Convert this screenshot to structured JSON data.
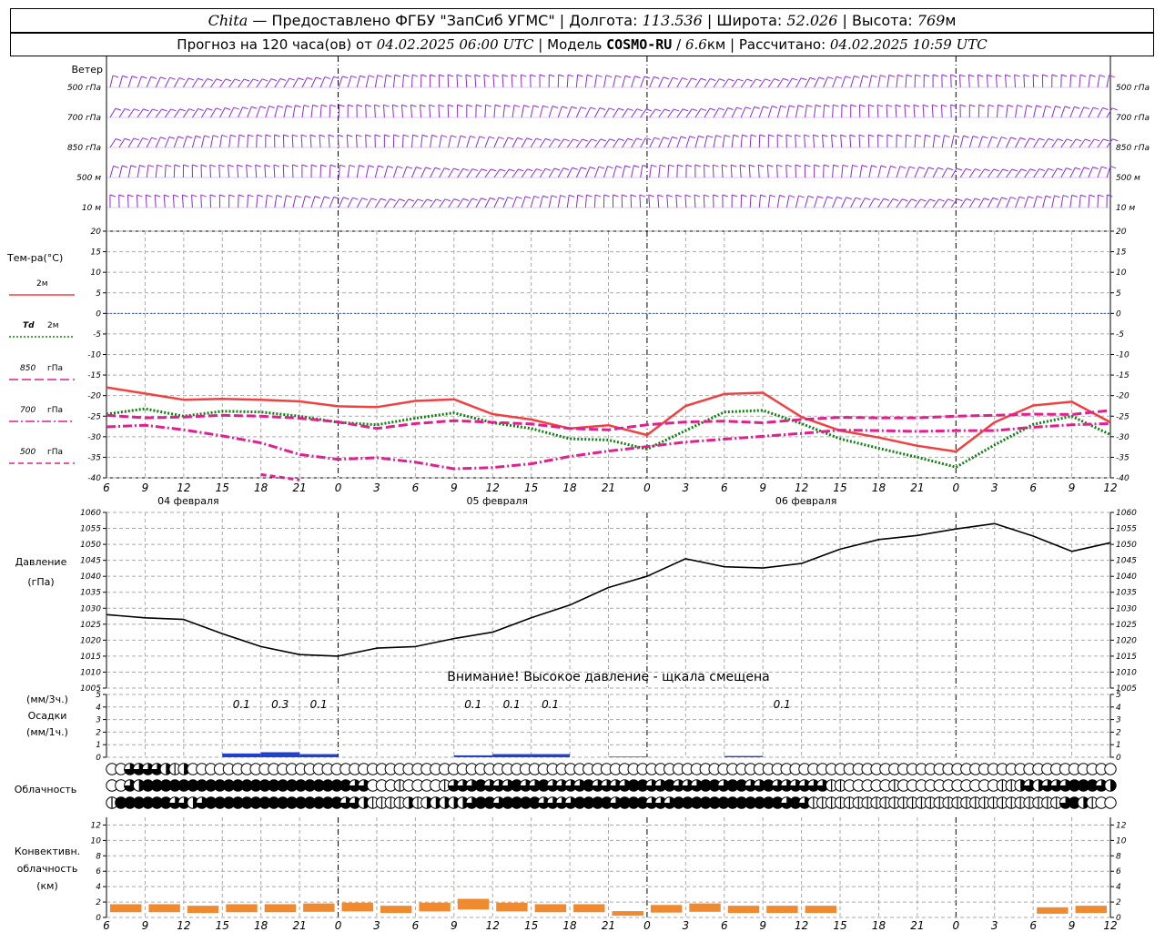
{
  "header": {
    "station": "Chita",
    "dash": "—",
    "provider": "Предоставлено ФГБУ \"ЗапСиб УГМС\"",
    "lon_label": "Долгота:",
    "lon": "113.536",
    "lat_label": "Широта:",
    "lat": "52.026",
    "alt_label": "Высота:",
    "alt": "769",
    "alt_unit": "м",
    "sep": "|",
    "forecast_prefix": "Прогноз на 120 часа(ов) от",
    "forecast_time": "04.02.2025 06:00 UTC",
    "model_label": "Модель",
    "model": "COSMO-RU",
    "model_slash": "/",
    "model_res": "6.6",
    "model_unit": "км",
    "computed_label": "Рассчитано:",
    "computed_time": "04.02.2025 10:59 UTC"
  },
  "time_axis": {
    "hour_labels": [
      "6",
      "9",
      "12",
      "15",
      "18",
      "21",
      "0",
      "3",
      "6",
      "9",
      "12",
      "15",
      "18",
      "21",
      "0",
      "3",
      "6",
      "9",
      "12",
      "15",
      "18",
      "21",
      "0",
      "3",
      "6",
      "9",
      "12"
    ],
    "date_labels": [
      {
        "text": "04 февраля",
        "at_step": 2
      },
      {
        "text": "05 февраля",
        "at_step": 10
      },
      {
        "text": "06 февраля",
        "at_step": 18
      }
    ],
    "midnight_steps": [
      6,
      14,
      22
    ]
  },
  "wind": {
    "title": "Ветер",
    "levels": [
      "500 гПа",
      "700 гПа",
      "850 гПа",
      "500 м",
      "10 м"
    ],
    "color": "#8a2be2"
  },
  "temperature": {
    "title": "Тем-ра(°С)",
    "ylim": [
      -40,
      20
    ],
    "ticks": [
      "20",
      "15",
      "10",
      "5",
      "0",
      "-5",
      "-10",
      "-15",
      "-20",
      "-25",
      "-30",
      "-35",
      "-40"
    ],
    "legend": [
      {
        "name": "2м",
        "prefix": "",
        "color": "#f04040",
        "style": "solid"
      },
      {
        "name": "2м",
        "prefix": "Td",
        "color": "#108010",
        "style": "dotted"
      },
      {
        "name": "гПа",
        "prefix": "850",
        "color": "#e0208e",
        "style": "dash"
      },
      {
        "name": "гПа",
        "prefix": "700",
        "color": "#e0208e",
        "style": "dashdot"
      },
      {
        "name": "гПа",
        "prefix": "500",
        "color": "#e0208e",
        "style": "dash2"
      }
    ],
    "zero_line_color": "#3050d0"
  },
  "pressure": {
    "title": "Давление",
    "unit": "(гПа)",
    "ylim": [
      1005,
      1060
    ],
    "ticks": [
      "1060",
      "1055",
      "1050",
      "1045",
      "1040",
      "1035",
      "1030",
      "1025",
      "1020",
      "1015",
      "1010",
      "1005"
    ],
    "warning": "Внимание! Высокое давление - щкала смещена"
  },
  "precip": {
    "unit3": "(мм/3ч.)",
    "title": "Осадки",
    "unit1": "(мм/1ч.)",
    "ylim": [
      0,
      5
    ],
    "ticks": [
      "5",
      "4",
      "3",
      "2",
      "1",
      "0"
    ],
    "labels": [
      {
        "step": 3,
        "text": "0.1"
      },
      {
        "step": 4,
        "text": "0.3"
      },
      {
        "step": 5,
        "text": "0.1"
      },
      {
        "step": 9,
        "text": "0.1"
      },
      {
        "step": 10,
        "text": "0.1"
      },
      {
        "step": 11,
        "text": "0.1"
      },
      {
        "step": 17,
        "text": "0.1"
      }
    ],
    "color": "#2040d0"
  },
  "cloud": {
    "title": "Облачность"
  },
  "convective": {
    "title1": "Конвективн.",
    "title2": "облачность",
    "unit": "(км)",
    "ylim": [
      0,
      13
    ],
    "ticks": [
      "12",
      "10",
      "8",
      "6",
      "4",
      "2",
      "0"
    ],
    "color": "#f08a30"
  },
  "chart_data": {
    "type": "line",
    "x": [
      "04.02 06",
      "09",
      "12",
      "15",
      "18",
      "21",
      "05.02 00",
      "03",
      "06",
      "09",
      "12",
      "15",
      "18",
      "21",
      "06.02 00",
      "03",
      "06",
      "09",
      "12",
      "15",
      "18",
      "21",
      "07.02 00",
      "03",
      "06",
      "09",
      "12"
    ],
    "series": [
      {
        "name": "2м",
        "values": [
          -18,
          -19.5,
          -21,
          -20.8,
          -21,
          -21.4,
          -22.6,
          -22.8,
          -21.3,
          -20.9,
          -24.5,
          -25.8,
          -28,
          -27.2,
          -29.6,
          -22.5,
          -19.6,
          -19.3,
          -25.2,
          -28.5,
          -30.2,
          -32.2,
          -33.6,
          -26.5,
          -22.4,
          -21.5,
          -26.5
        ]
      },
      {
        "name": "Td 2м",
        "values": [
          -24.5,
          -23.2,
          -25,
          -23.8,
          -24,
          -25,
          -26.5,
          -27.1,
          -25.5,
          -24.2,
          -26.6,
          -28,
          -30.5,
          -30.8,
          -33,
          -28.5,
          -24,
          -23.6,
          -26.8,
          -30.5,
          -32.8,
          -35,
          -37.4,
          -32,
          -27,
          -25,
          -29.5
        ]
      },
      {
        "name": "850 гПа",
        "values": [
          -24.8,
          -25.4,
          -25.2,
          -24.8,
          -25,
          -25.5,
          -26.4,
          -28,
          -26.8,
          -26.1,
          -26.5,
          -26.9,
          -28,
          -28.3,
          -27.1,
          -26.4,
          -26.2,
          -26.6,
          -25.8,
          -25.3,
          -25.4,
          -25.4,
          -25,
          -24.8,
          -24.5,
          -24.6,
          -23.6
        ]
      },
      {
        "name": "700 гПа",
        "values": [
          -27.6,
          -27.2,
          -28.3,
          -29.8,
          -31.5,
          -34.3,
          -35.5,
          -35.1,
          -36.2,
          -37.8,
          -37.5,
          -36.6,
          -34.8,
          -33.5,
          -32.4,
          -31.3,
          -30.6,
          -29.9,
          -29.2,
          -28.4,
          -28.5,
          -28.7,
          -28.5,
          -28.5,
          -27.7,
          -27.1,
          -26.8
        ]
      },
      {
        "name": "500 гПа",
        "values": [
          null,
          null,
          null,
          null,
          -39.2,
          -40.5,
          null,
          null,
          null,
          null,
          null,
          null,
          null,
          null,
          null,
          null,
          null,
          null,
          null,
          null,
          null,
          null,
          null,
          null,
          null,
          null,
          null
        ]
      }
    ],
    "pressure_values": [
      1028,
      1027,
      1026.5,
      1022,
      1018,
      1015.5,
      1015,
      1017.5,
      1018,
      1020.5,
      1022.5,
      1027,
      1031,
      1036.5,
      1040,
      1045.5,
      1043,
      1042.6,
      1044,
      1048.5,
      1051.5,
      1052.8,
      1054.8,
      1056.5,
      1052.6,
      1047.8,
      1050.5
    ],
    "precip_values": [
      0,
      0,
      0,
      0.3,
      0.4,
      0.25,
      0,
      0,
      0,
      0.15,
      0.25,
      0.25,
      0,
      0.05,
      0,
      0,
      0.1,
      0,
      0,
      0,
      0,
      0,
      0,
      0,
      0,
      0,
      0
    ],
    "cloud_cover_rows": [
      [
        0,
        0,
        3,
        3,
        3,
        3,
        2,
        1,
        2,
        0,
        0,
        0,
        0,
        0,
        0,
        0,
        0,
        0,
        0,
        0,
        0,
        0,
        0,
        0,
        0,
        0,
        0,
        0,
        0,
        0,
        0,
        0,
        0,
        0,
        0,
        0,
        0,
        0,
        0,
        0,
        0,
        0,
        0,
        0,
        0,
        0,
        0,
        0,
        0,
        0,
        0,
        0,
        0,
        0,
        0,
        0,
        0,
        0,
        0,
        0,
        0,
        0,
        0,
        0,
        0,
        0,
        0,
        0,
        0,
        0,
        0,
        0,
        0,
        0,
        0,
        0,
        0,
        0,
        0,
        0,
        0,
        0,
        0,
        0,
        0,
        0,
        0,
        0,
        0,
        0,
        0,
        0,
        0,
        0,
        0,
        0,
        0,
        0,
        0,
        0,
        0,
        0,
        0,
        0,
        0,
        0,
        0,
        0,
        0,
        0,
        0,
        0
      ],
      [
        0,
        0,
        3,
        2,
        4,
        4,
        4,
        4,
        4,
        4,
        4,
        4,
        4,
        4,
        4,
        4,
        4,
        4,
        4,
        4,
        4,
        4,
        4,
        4,
        4,
        4,
        4,
        3,
        3,
        0,
        0,
        0,
        1,
        0,
        0,
        0,
        0,
        1,
        3,
        3,
        3,
        4,
        3,
        3,
        3,
        4,
        3,
        3,
        4,
        3,
        3,
        3,
        3,
        4,
        3,
        3,
        3,
        3,
        4,
        4,
        3,
        3,
        4,
        3,
        3,
        3,
        4,
        4,
        3,
        4,
        4,
        3,
        3,
        4,
        3,
        3,
        3,
        3,
        3,
        3,
        1,
        1,
        0,
        0,
        0,
        0,
        0,
        1,
        0,
        0,
        0,
        0,
        0,
        0,
        0,
        0,
        0,
        0,
        0,
        1,
        1,
        2,
        3,
        2,
        3,
        3,
        3,
        4,
        4,
        4,
        3,
        2
      ],
      [
        1,
        4,
        4,
        4,
        4,
        4,
        4,
        3,
        3,
        2,
        3,
        4,
        4,
        4,
        4,
        4,
        4,
        4,
        4,
        4,
        4,
        4,
        4,
        4,
        4,
        4,
        3,
        3,
        2,
        1,
        1,
        1,
        1,
        2,
        1,
        2,
        2,
        2,
        2,
        2,
        3,
        4,
        4,
        3,
        4,
        4,
        4,
        4,
        3,
        3,
        3,
        3,
        4,
        4,
        4,
        4,
        3,
        4,
        4,
        4,
        3,
        3,
        3,
        4,
        4,
        4,
        4,
        4,
        4,
        4,
        4,
        4,
        4,
        4,
        4,
        3,
        4,
        3,
        1,
        1,
        1,
        1,
        1,
        1,
        1,
        1,
        1,
        1,
        1,
        1,
        1,
        1,
        1,
        1,
        1,
        1,
        1,
        1,
        1,
        1,
        1,
        1,
        1,
        1,
        1,
        1,
        3,
        4,
        2,
        1,
        0,
        0
      ]
    ],
    "convective_values": [
      1.6,
      1.6,
      1.4,
      1.6,
      1.6,
      1.7,
      1.8,
      1.4,
      1.8,
      2.3,
      1.8,
      1.6,
      1.6,
      0.7,
      1.5,
      1.7,
      1.4,
      1.4,
      1.4,
      0,
      0,
      0,
      0,
      0,
      1.2,
      1.4,
      0
    ]
  }
}
